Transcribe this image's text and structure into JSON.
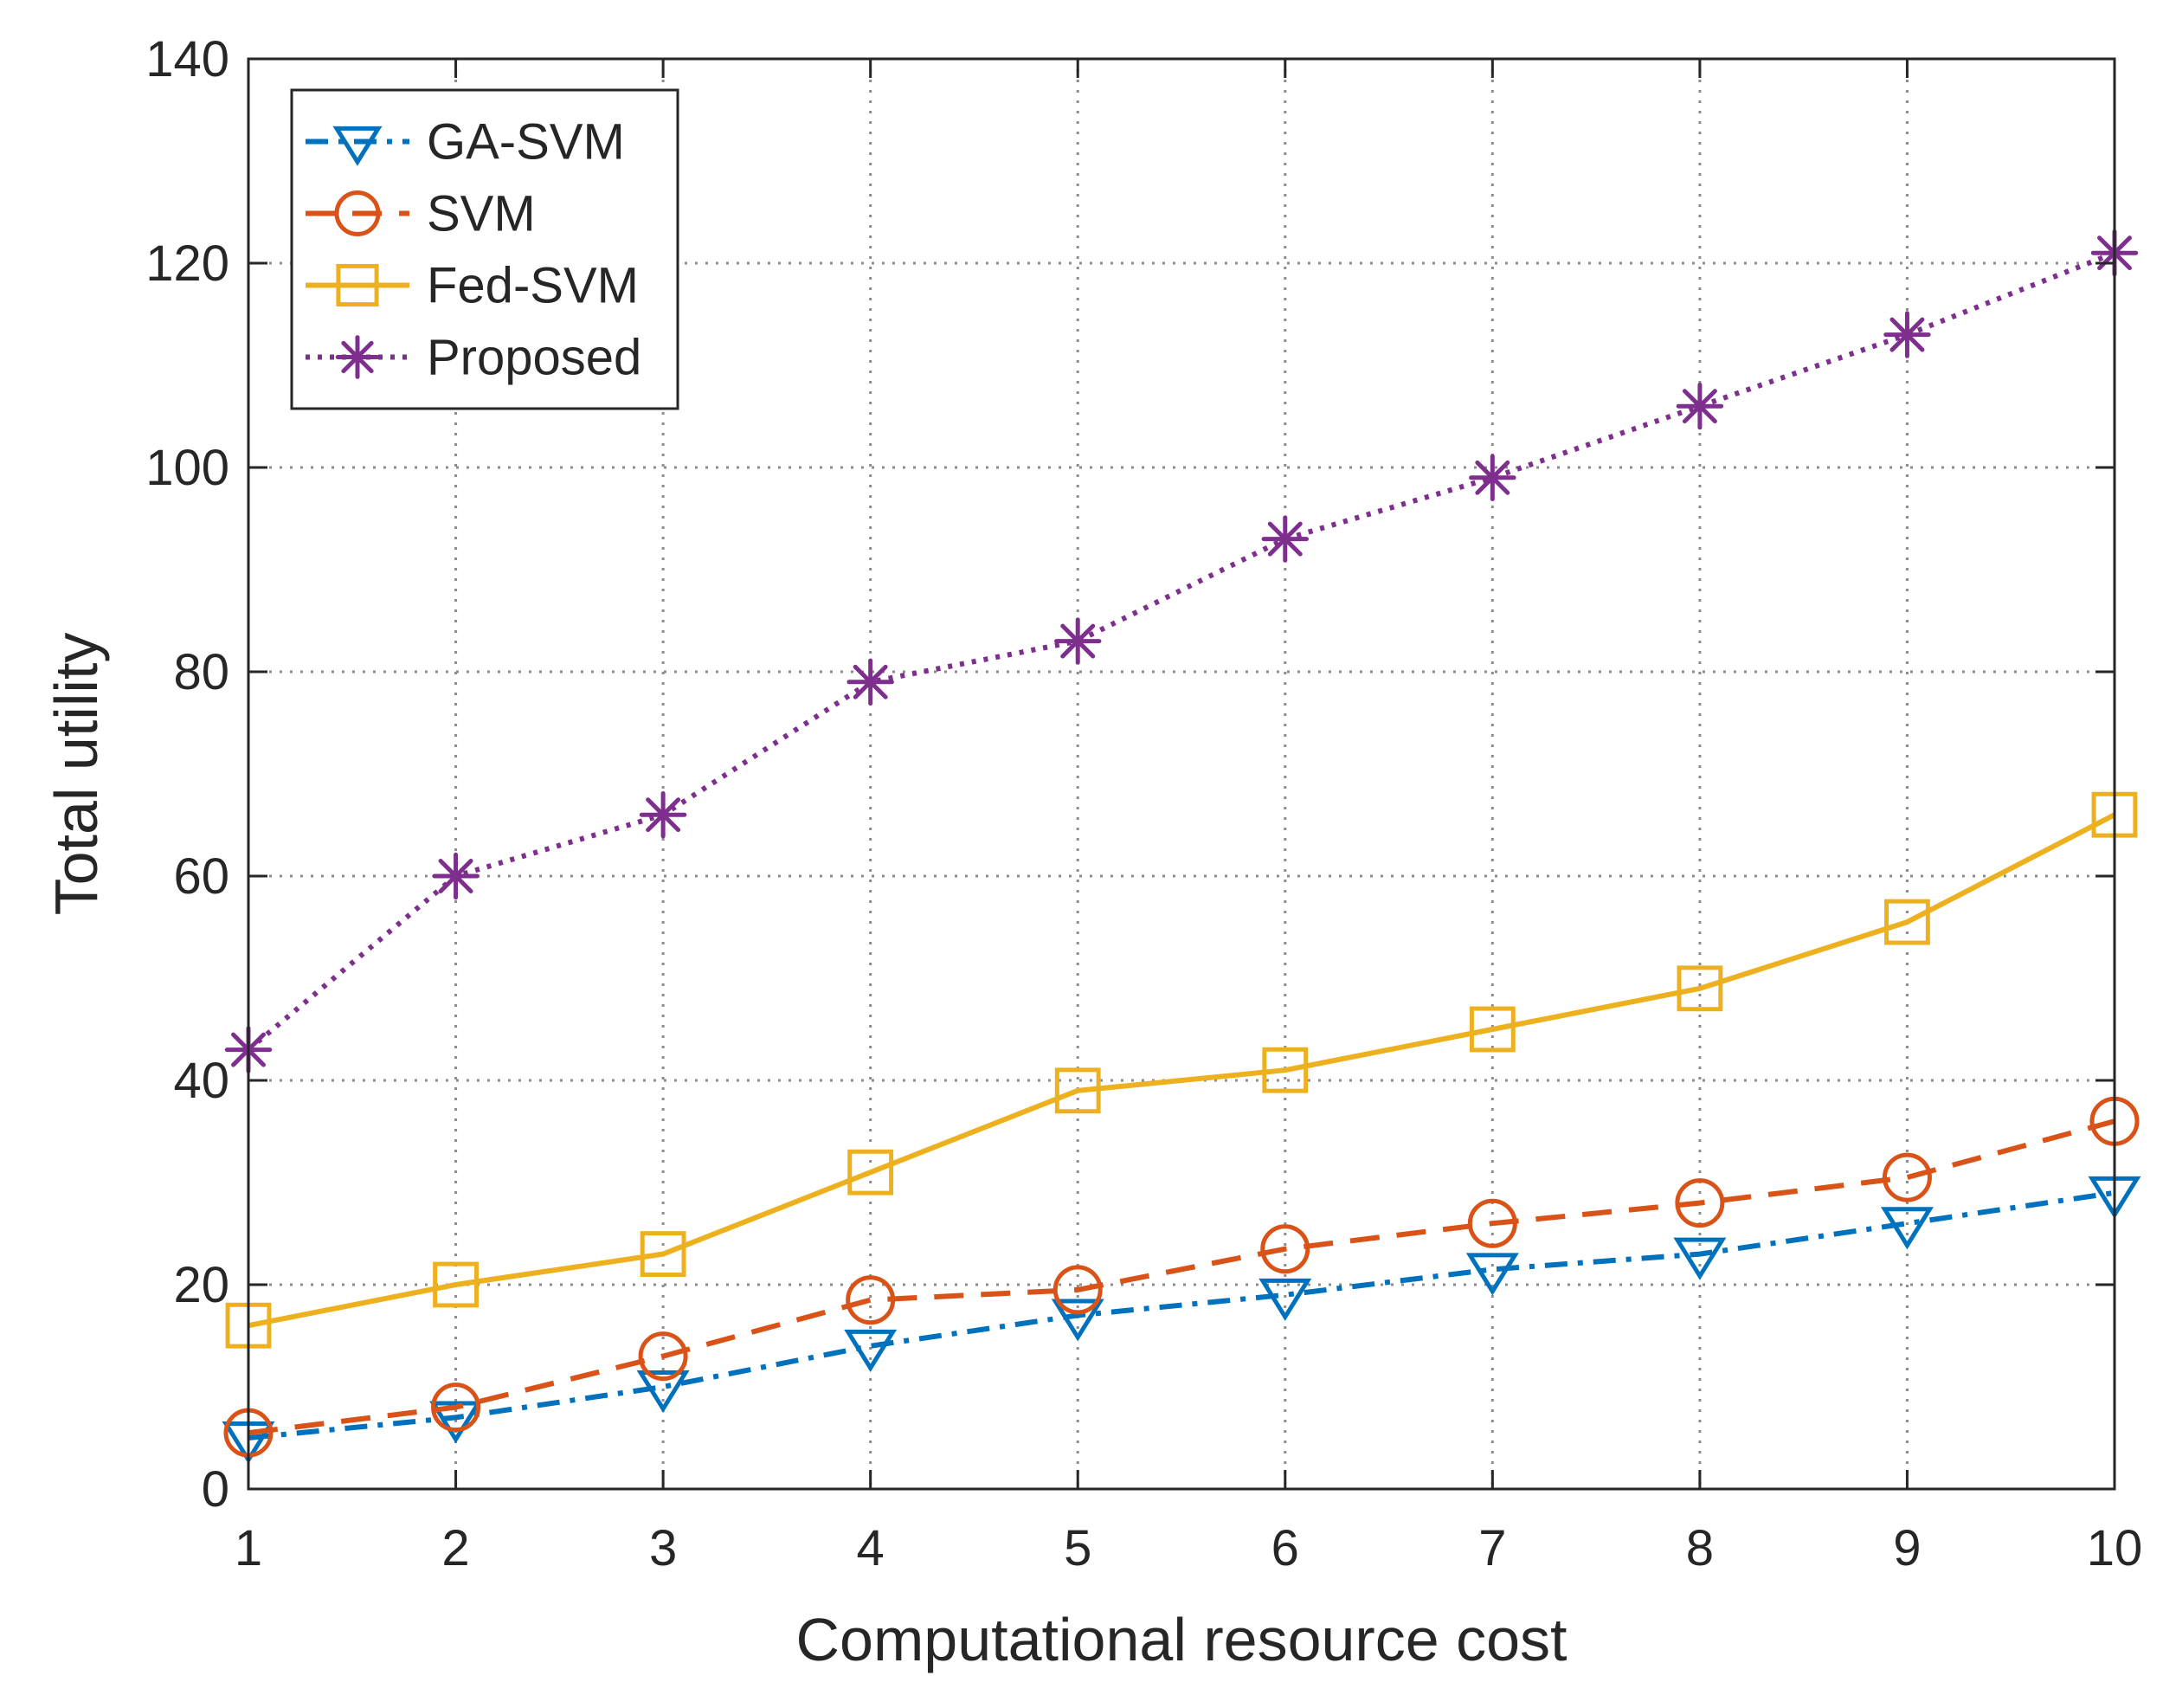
{
  "chart_data": {
    "type": "line",
    "title": "",
    "xlabel": "Computational resource cost",
    "ylabel": "Total utility",
    "xlim": [
      1,
      10
    ],
    "ylim": [
      0,
      140
    ],
    "xticks": [
      1,
      2,
      3,
      4,
      5,
      6,
      7,
      8,
      9,
      10
    ],
    "yticks": [
      0,
      20,
      40,
      60,
      80,
      100,
      120,
      140
    ],
    "grid": true,
    "legend_position": "top-left",
    "x": [
      1,
      2,
      3,
      4,
      5,
      6,
      7,
      8,
      9,
      10
    ],
    "series": [
      {
        "name": "GA-SVM",
        "color": "#0072BD",
        "marker": "triangle-down",
        "line_style": "dash-dot",
        "values": [
          5,
          7,
          10,
          14,
          17,
          19,
          21.5,
          23,
          26,
          29
        ]
      },
      {
        "name": "SVM",
        "color": "#D95319",
        "marker": "circle",
        "line_style": "dashed",
        "values": [
          5.5,
          8,
          13,
          18.5,
          19.5,
          23.5,
          26,
          28,
          30.5,
          36
        ]
      },
      {
        "name": "Fed-SVM",
        "color": "#EDB120",
        "marker": "square",
        "line_style": "solid",
        "values": [
          16,
          20,
          23,
          31,
          39,
          41,
          45,
          49,
          55.5,
          66
        ]
      },
      {
        "name": "Proposed",
        "color": "#7E2F8E",
        "marker": "asterisk",
        "line_style": "dotted",
        "values": [
          43,
          60,
          66,
          79,
          83,
          93,
          99,
          106,
          113,
          121
        ]
      }
    ]
  }
}
